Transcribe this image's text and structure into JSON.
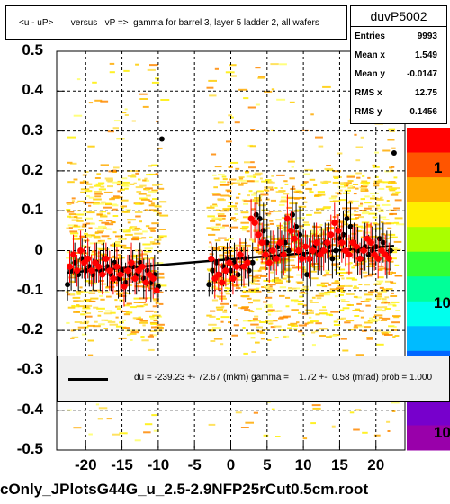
{
  "header": {
    "title": "<u - uP>       versus   vP =>  gamma for barrel 3, layer 5 ladder 2, all wafers"
  },
  "stats": {
    "name": "duvP5002",
    "rows": [
      {
        "label": "Entries",
        "value": "9993"
      },
      {
        "label": "Mean x",
        "value": "1.549"
      },
      {
        "label": "Mean y",
        "value": "-0.0147"
      },
      {
        "label": "RMS x",
        "value": "12.75"
      },
      {
        "label": "RMS y",
        "value": "0.1456"
      }
    ]
  },
  "legend": {
    "text": "du = -239.23 +- 72.67 (mkm) gamma =    1.72 +-  0.58 (mrad) prob = 1.000"
  },
  "footer": {
    "filename": "cOnly_JPlotsG44G_u_2.5-2.9NFP25rCut0.5cm.root"
  },
  "colors": {
    "profile_black": "#000000",
    "profile_red": "#ff0000",
    "fit_line": "#000000",
    "legend_bg": "#f0f0f0"
  },
  "chart_data": {
    "type": "scatter",
    "xlim": [
      -24,
      24
    ],
    "ylim": [
      -0.5,
      0.5
    ],
    "x_ticks": [
      "-20",
      "-15",
      "-10",
      "-5",
      "0",
      "5",
      "10",
      "15",
      "20"
    ],
    "x_tick_values": [
      -20,
      -15,
      -10,
      -5,
      0,
      5,
      10,
      15,
      20
    ],
    "y_ticks": [
      "0.5",
      "0.4",
      "0.3",
      "0.2",
      "0.1",
      "0",
      "-0.1",
      "-0.2",
      "-0.3",
      "-0.4",
      "-0.5"
    ],
    "y_tick_values": [
      0.5,
      0.4,
      0.3,
      0.2,
      0.1,
      0,
      -0.1,
      -0.2,
      -0.3,
      -0.4,
      -0.5
    ],
    "colorbar_ticks": [
      "1",
      "10",
      "10"
    ],
    "grid": true,
    "fit": {
      "x": [
        -22.5,
        22.5
      ],
      "y": [
        -0.055,
        0.012
      ]
    },
    "series": [
      {
        "color": "black",
        "x": [
          -22.5,
          -22,
          -21.5,
          -21,
          -20.5,
          -20,
          -19.5,
          -19,
          -18.5,
          -18,
          -17.5,
          -17,
          -16.5,
          -16,
          -15.5,
          -15,
          -14.5,
          -14,
          -13.5,
          -13,
          -12.5,
          -12,
          -11.5,
          -11,
          -10.5,
          -10,
          -9.5,
          -3,
          -2.5,
          -2,
          -1.5,
          -1,
          -0.5,
          0,
          0.5,
          1,
          1.5,
          2,
          2.5,
          3,
          3.5,
          4,
          4.5,
          5,
          5.5,
          6,
          6.5,
          7,
          7.5,
          8,
          8.5,
          9,
          9.5,
          10,
          10.5,
          11,
          11.5,
          12,
          12.5,
          13,
          13.5,
          14,
          14.5,
          15,
          15.5,
          16,
          16.5,
          17,
          17.5,
          18,
          18.5,
          19,
          19.5,
          20,
          20.5,
          21,
          21.5,
          22,
          22.5
        ],
        "y": [
          -0.085,
          -0.05,
          -0.03,
          -0.06,
          -0.02,
          -0.05,
          -0.04,
          -0.06,
          -0.03,
          -0.05,
          -0.02,
          -0.04,
          -0.06,
          -0.03,
          -0.07,
          -0.05,
          -0.08,
          -0.06,
          -0.04,
          -0.06,
          -0.03,
          -0.07,
          -0.05,
          -0.08,
          -0.06,
          -0.09,
          0.28,
          -0.085,
          -0.05,
          -0.03,
          -0.06,
          -0.04,
          -0.02,
          -0.05,
          -0.03,
          -0.06,
          -0.04,
          -0.02,
          -0.05,
          -0.03,
          0.09,
          0.08,
          0.05,
          0.02,
          0.0,
          -0.02,
          0.01,
          -0.01,
          0.02,
          0.0,
          0.09,
          0.06,
          0.04,
          -0.01,
          -0.06,
          -0.02,
          0.01,
          -0.01,
          0.0,
          0.02,
          0.01,
          -0.02,
          0.0,
          0.03,
          0.04,
          0.08,
          0.06,
          0.02,
          0.0,
          -0.02,
          0.01,
          -0.01,
          0.0,
          0.01,
          0.03,
          0.02,
          -0.01,
          0.0,
          0.245
        ],
        "err": [
          0.04,
          0.05,
          0.05,
          0.04,
          0.05,
          0.04,
          0.05,
          0.04,
          0.05,
          0.05,
          0.04,
          0.05,
          0.04,
          0.05,
          0.05,
          0.04,
          0.05,
          0.05,
          0.04,
          0.05,
          0.05,
          0.05,
          0.04,
          0.05,
          0.05,
          0.04,
          0.0,
          0.03,
          0.06,
          0.05,
          0.05,
          0.05,
          0.04,
          0.05,
          0.05,
          0.04,
          0.05,
          0.05,
          0.04,
          0.05,
          0.06,
          0.06,
          0.07,
          0.06,
          0.05,
          0.06,
          0.05,
          0.06,
          0.07,
          0.08,
          0.07,
          0.06,
          0.07,
          0.06,
          0.1,
          0.07,
          0.06,
          0.05,
          0.06,
          0.05,
          0.06,
          0.05,
          0.06,
          0.05,
          0.06,
          0.07,
          0.06,
          0.05,
          0.06,
          0.05,
          0.06,
          0.05,
          0.06,
          0.05,
          0.06,
          0.05,
          0.06,
          0.05,
          0.0
        ]
      },
      {
        "color": "red",
        "x": [
          -22.2,
          -21.7,
          -21.2,
          -20.7,
          -20.2,
          -19.7,
          -19.2,
          -18.7,
          -18.2,
          -17.7,
          -17.2,
          -16.7,
          -16.2,
          -15.7,
          -15.2,
          -14.7,
          -14.2,
          -13.7,
          -13.2,
          -12.7,
          -12.2,
          -11.7,
          -11.2,
          -10.7,
          -10.2,
          -2.7,
          -2.2,
          -1.7,
          -1.2,
          -0.7,
          -0.2,
          0.3,
          0.8,
          1.3,
          1.8,
          2.3,
          2.8,
          3.3,
          3.8,
          4.3,
          4.8,
          5.3,
          5.8,
          6.3,
          6.8,
          7.3,
          7.8,
          8.3,
          8.8,
          9.3,
          9.8,
          10.3,
          10.8,
          11.3,
          11.8,
          12.3,
          12.8,
          13.3,
          13.8,
          14.3,
          14.8,
          15.3,
          15.8,
          16.3,
          16.8,
          17.3,
          17.8,
          18.3,
          18.8,
          19.3,
          19.8,
          20.3,
          20.8,
          21.3,
          21.8
        ],
        "y": [
          -0.04,
          -0.01,
          -0.05,
          0.0,
          -0.03,
          -0.02,
          -0.05,
          -0.03,
          -0.04,
          -0.06,
          -0.02,
          -0.05,
          -0.07,
          -0.04,
          -0.06,
          -0.09,
          -0.05,
          -0.03,
          -0.07,
          -0.05,
          -0.04,
          -0.08,
          -0.06,
          -0.07,
          -0.1,
          -0.02,
          -0.07,
          -0.06,
          -0.08,
          -0.05,
          -0.03,
          -0.07,
          -0.04,
          -0.01,
          -0.04,
          -0.03,
          0.08,
          0.07,
          0.04,
          0.02,
          -0.01,
          -0.03,
          0.0,
          -0.02,
          0.02,
          -0.01,
          0.08,
          0.05,
          0.03,
          0.0,
          -0.02,
          0.01,
          -0.02,
          0.0,
          0.02,
          -0.01,
          0.0,
          0.02,
          0.04,
          0.07,
          0.05,
          0.02,
          0.0,
          -0.01,
          0.02,
          0.01,
          -0.02,
          0.0,
          0.03,
          0.02,
          -0.01,
          -0.02,
          0.0,
          -0.01,
          -0.02
        ],
        "err": [
          0.04,
          0.05,
          0.04,
          0.05,
          0.04,
          0.05,
          0.04,
          0.05,
          0.04,
          0.05,
          0.04,
          0.05,
          0.04,
          0.05,
          0.04,
          0.05,
          0.04,
          0.05,
          0.04,
          0.05,
          0.04,
          0.05,
          0.04,
          0.05,
          0.04,
          0.04,
          0.05,
          0.04,
          0.05,
          0.04,
          0.05,
          0.04,
          0.05,
          0.04,
          0.05,
          0.04,
          0.05,
          0.05,
          0.04,
          0.05,
          0.04,
          0.05,
          0.05,
          0.04,
          0.05,
          0.05,
          0.06,
          0.05,
          0.04,
          0.05,
          0.05,
          0.04,
          0.05,
          0.04,
          0.05,
          0.04,
          0.05,
          0.04,
          0.05,
          0.05,
          0.04,
          0.05,
          0.04,
          0.05,
          0.04,
          0.05,
          0.04,
          0.05,
          0.04,
          0.05,
          0.04,
          0.05,
          0.04,
          0.05,
          0.04
        ]
      }
    ]
  }
}
